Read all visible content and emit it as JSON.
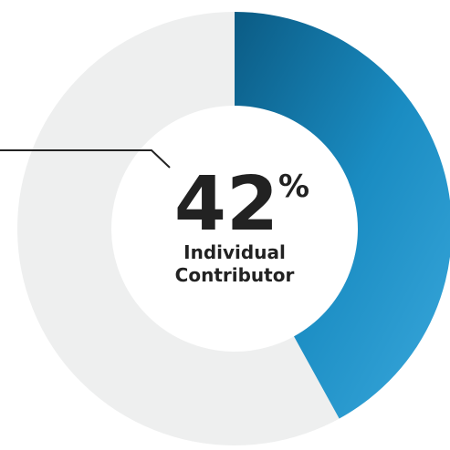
{
  "chart_data": {
    "type": "pie",
    "categories": [
      "Individual Contributor"
    ],
    "values": [
      42
    ],
    "value_labels": [
      "42%"
    ],
    "color": "#1a8cc2",
    "rest_color": "#eeefef"
  }
}
